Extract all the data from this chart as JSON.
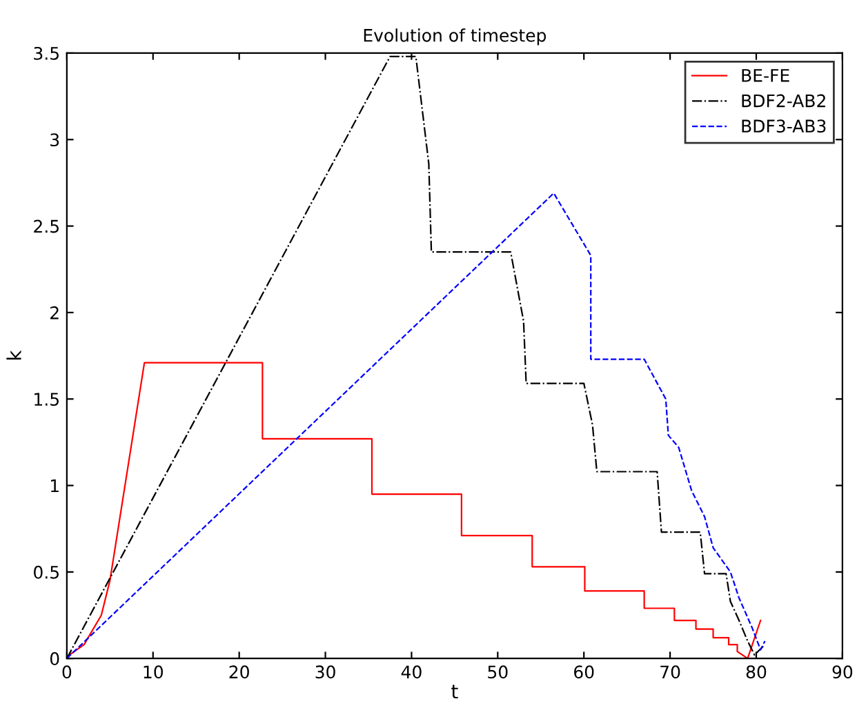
{
  "chart_data": {
    "type": "line",
    "title": "Evolution of timestep",
    "xlabel": "t",
    "ylabel": "k",
    "xlim": [
      0,
      90
    ],
    "xticks": [
      0,
      10,
      20,
      30,
      40,
      50,
      60,
      70,
      80,
      90
    ],
    "ylim": [
      0,
      3.5
    ],
    "yticks": [
      0,
      0.5,
      1,
      1.5,
      2,
      2.5,
      3,
      3.5
    ],
    "grid": false,
    "legend": "top right",
    "marker": "none",
    "series": [
      {
        "name": "BE-FE",
        "color": "#ff0000",
        "line_style": "solid",
        "x": [
          0,
          2,
          4,
          5,
          9,
          22.7,
          22.7,
          35.4,
          35.4,
          45.8,
          45.8,
          54,
          54,
          60.1,
          60.1,
          67,
          67,
          70.5,
          70.5,
          73,
          73,
          75,
          75,
          76.8,
          76.8,
          77.8,
          77.8,
          79,
          80.5
        ],
        "values": [
          0.01,
          0.08,
          0.25,
          0.45,
          1.71,
          1.71,
          1.27,
          1.27,
          0.95,
          0.95,
          0.71,
          0.71,
          0.53,
          0.53,
          0.39,
          0.39,
          0.29,
          0.29,
          0.22,
          0.22,
          0.17,
          0.17,
          0.12,
          0.12,
          0.08,
          0.08,
          0.04,
          0,
          0.22
        ]
      },
      {
        "name": "BDF2-AB2",
        "color": "#000000",
        "line_style": "dashdot",
        "x": [
          0,
          37.5,
          40.5,
          42,
          42.3,
          51.5,
          53,
          53.3,
          60,
          61,
          61.5,
          68.5,
          69,
          73.5,
          74,
          76.5,
          77,
          78,
          79,
          79.8,
          81
        ],
        "values": [
          0,
          3.48,
          3.48,
          2.86,
          2.35,
          2.35,
          1.95,
          1.59,
          1.59,
          1.35,
          1.08,
          1.08,
          0.73,
          0.73,
          0.49,
          0.49,
          0.33,
          0.22,
          0.1,
          0.02,
          0.08
        ]
      },
      {
        "name": "BDF3-AB3",
        "color": "#0000ff",
        "line_style": "dashed",
        "x": [
          0,
          56.5,
          60.8,
          60.8,
          67,
          69.5,
          69.8,
          71,
          72.5,
          74,
          75,
          77,
          78,
          79.5,
          80.5,
          81
        ],
        "values": [
          0,
          2.69,
          2.33,
          1.73,
          1.73,
          1.5,
          1.29,
          1.22,
          0.97,
          0.82,
          0.64,
          0.5,
          0.35,
          0.18,
          0.05,
          0.1
        ]
      }
    ]
  }
}
